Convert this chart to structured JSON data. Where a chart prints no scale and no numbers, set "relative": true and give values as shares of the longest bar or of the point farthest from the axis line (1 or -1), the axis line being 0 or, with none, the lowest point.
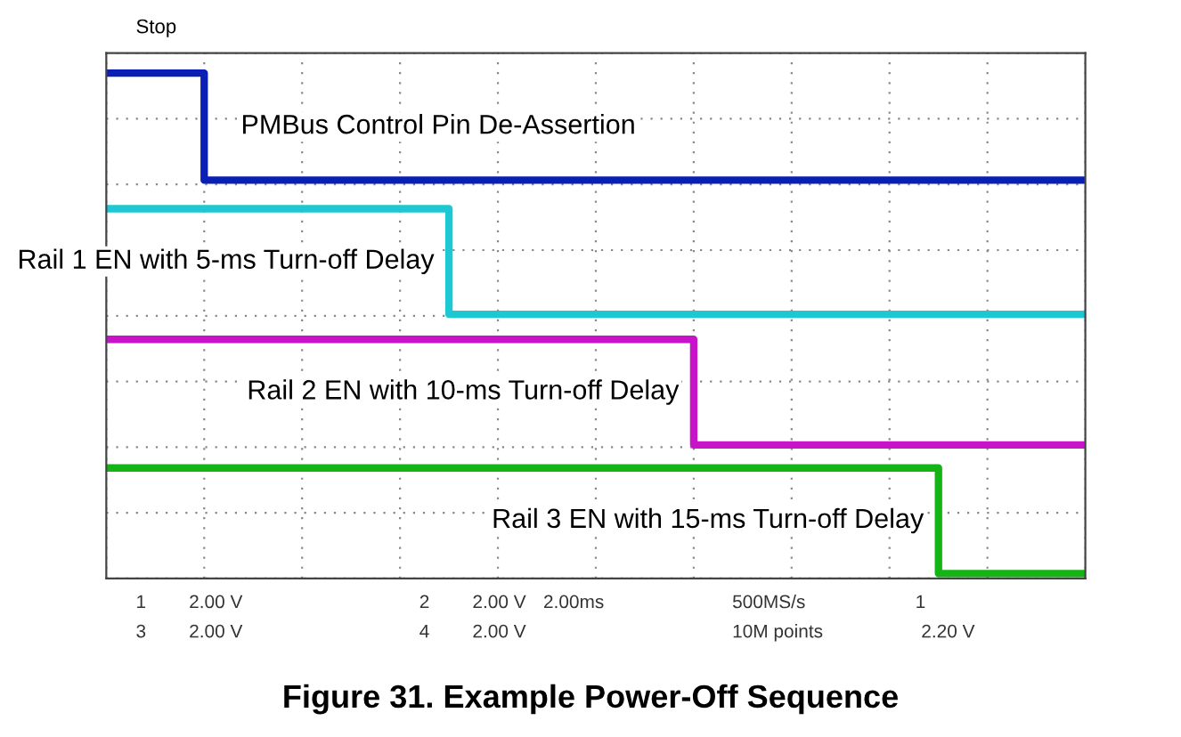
{
  "chart_data": {
    "type": "step",
    "title": "Figure 31. Example Power-Off Sequence",
    "relative": true,
    "grid": true,
    "categories": [
      null,
      null,
      null,
      null,
      null,
      null,
      null,
      null,
      null,
      null,
      null,
      null,
      null,
      null,
      null,
      null,
      null,
      null,
      null,
      null,
      null,
      null,
      null,
      null,
      null,
      null,
      null,
      null,
      null,
      null,
      null,
      null,
      null,
      null,
      null,
      null,
      null,
      null,
      null,
      null,
      null
    ],
    "series": [
      {
        "name": "PMBus Control Pin De-Assertion",
        "color": "#0a1fb4",
        "values": [
          1,
          1,
          1,
          1,
          0.786,
          0.786,
          0.786,
          0.786,
          0.786,
          0.786,
          0.786,
          0.786,
          0.786,
          0.786,
          0.786,
          0.786,
          0.786,
          0.786,
          0.786,
          0.786,
          0.786,
          0.786,
          0.786,
          0.786,
          0.786,
          0.786,
          0.786,
          0.786,
          0.786,
          0.786,
          0.786,
          0.786,
          0.786,
          0.786,
          0.786,
          0.786,
          0.786,
          0.786,
          0.786,
          0.786,
          0.786
        ]
      },
      {
        "name": "Rail 1 EN with 5-ms Turn-off Delay",
        "color": "#1ec8d2",
        "values": [
          0.729,
          0.729,
          0.729,
          0.729,
          0.729,
          0.729,
          0.729,
          0.729,
          0.729,
          0.729,
          0.729,
          0.729,
          0.729,
          0.729,
          0.518,
          0.518,
          0.518,
          0.518,
          0.518,
          0.518,
          0.518,
          0.518,
          0.518,
          0.518,
          0.518,
          0.518,
          0.518,
          0.518,
          0.518,
          0.518,
          0.518,
          0.518,
          0.518,
          0.518,
          0.518,
          0.518,
          0.518,
          0.518,
          0.518,
          0.518,
          0.518
        ]
      },
      {
        "name": "Rail 2 EN with 10-ms Turn-off Delay",
        "color": "#c814c8",
        "values": [
          0.468,
          0.468,
          0.468,
          0.468,
          0.468,
          0.468,
          0.468,
          0.468,
          0.468,
          0.468,
          0.468,
          0.468,
          0.468,
          0.468,
          0.468,
          0.468,
          0.468,
          0.468,
          0.468,
          0.468,
          0.468,
          0.468,
          0.468,
          0.468,
          0.257,
          0.257,
          0.257,
          0.257,
          0.257,
          0.257,
          0.257,
          0.257,
          0.257,
          0.257,
          0.257,
          0.257,
          0.257,
          0.257,
          0.257,
          0.257,
          0.257
        ]
      },
      {
        "name": "Rail 3 EN with 15-ms Turn-off Delay",
        "color": "#14b414",
        "values": [
          0.211,
          0.211,
          0.211,
          0.211,
          0.211,
          0.211,
          0.211,
          0.211,
          0.211,
          0.211,
          0.211,
          0.211,
          0.211,
          0.211,
          0.211,
          0.211,
          0.211,
          0.211,
          0.211,
          0.211,
          0.211,
          0.211,
          0.211,
          0.211,
          0.211,
          0.211,
          0.211,
          0.211,
          0.211,
          0.211,
          0.211,
          0.211,
          0.211,
          0.211,
          0,
          0,
          0,
          0,
          0,
          0,
          0
        ]
      }
    ],
    "annotations": [
      "Stop",
      "1",
      "2.00 V",
      "2",
      "2.00 V",
      "2.00ms",
      "500MS/s",
      "1",
      "3",
      "2.00 V",
      "4",
      "2.00 V",
      "10M points",
      "2.20 V"
    ]
  }
}
